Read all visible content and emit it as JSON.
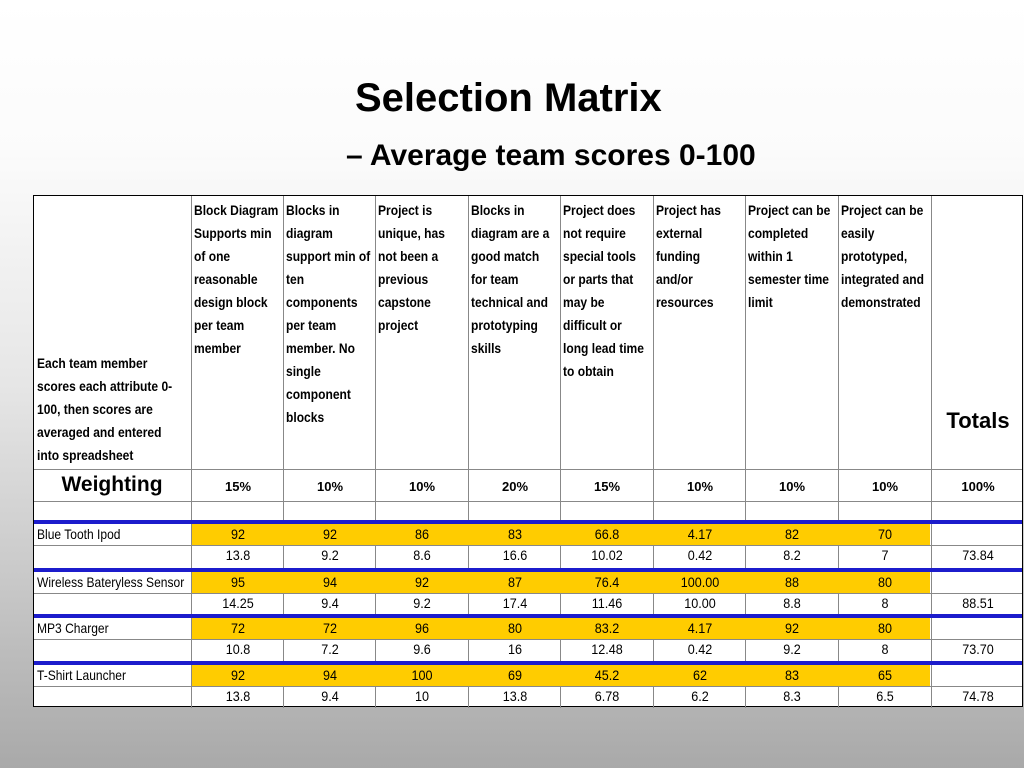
{
  "title": "Selection Matrix",
  "subtitle": "– Average team scores 0-100",
  "matrix": {
    "row_label": [
      "Each team member",
      "scores each attribute 0-",
      "100, then scores are",
      "averaged and entered",
      "into spreadsheet"
    ],
    "criteria": [
      {
        "lines": [
          "Block Diagram",
          "Supports min",
          "of one",
          "reasonable",
          "design block",
          "per team",
          "member"
        ],
        "weight": "15%"
      },
      {
        "lines": [
          "Blocks in",
          "diagram",
          "support min of",
          "ten",
          "components",
          "per team",
          "member. No",
          "single",
          "component",
          "blocks"
        ],
        "weight": "10%"
      },
      {
        "lines": [
          "Project is",
          "unique, has",
          "not been a",
          "previous",
          "capstone",
          "project"
        ],
        "weight": "10%"
      },
      {
        "lines": [
          "Blocks in",
          "diagram are a",
          "good match",
          "for team",
          "technical and",
          "prototyping",
          "skills"
        ],
        "weight": "20%"
      },
      {
        "lines": [
          "Project does",
          "not require",
          "special tools",
          "or parts that",
          "may be",
          "difficult or",
          "long lead time",
          "to obtain"
        ],
        "weight": "15%"
      },
      {
        "lines": [
          "Project has",
          "external",
          "funding",
          "and/or",
          "resources"
        ],
        "weight": "10%"
      },
      {
        "lines": [
          "Project can be",
          "completed",
          "within 1",
          "semester time",
          "limit"
        ],
        "weight": "10%"
      },
      {
        "lines": [
          "Project can be",
          "easily",
          "prototyped,",
          "integrated and",
          "demonstrated"
        ],
        "weight": "10%"
      }
    ],
    "totals_label": "Totals",
    "weighting_label": "Weighting",
    "total_weight": "100%",
    "projects": [
      {
        "name": "Blue Tooth Ipod",
        "scores": [
          "92",
          "92",
          "86",
          "83",
          "66.8",
          "4.17",
          "82",
          "70"
        ],
        "weighted": [
          "13.8",
          "9.2",
          "8.6",
          "16.6",
          "10.02",
          "0.42",
          "8.2",
          "7"
        ],
        "total": "73.84"
      },
      {
        "name": "Wireless Bateryless Sensor",
        "scores": [
          "95",
          "94",
          "92",
          "87",
          "76.4",
          "100.00",
          "88",
          "80"
        ],
        "weighted": [
          "14.25",
          "9.4",
          "9.2",
          "17.4",
          "11.46",
          "10.00",
          "8.8",
          "8"
        ],
        "total": "88.51"
      },
      {
        "name": "MP3 Charger",
        "scores": [
          "72",
          "72",
          "96",
          "80",
          "83.2",
          "4.17",
          "92",
          "80"
        ],
        "weighted": [
          "10.8",
          "7.2",
          "9.6",
          "16",
          "12.48",
          "0.42",
          "9.2",
          "8"
        ],
        "total": "73.70"
      },
      {
        "name": "T-Shirt Launcher",
        "scores": [
          "92",
          "94",
          "100",
          "69",
          "45.2",
          "62",
          "83",
          "65"
        ],
        "weighted": [
          "13.8",
          "9.4",
          "10",
          "13.8",
          "6.78",
          "6.2",
          "8.3",
          "6.5"
        ],
        "total": "74.78"
      }
    ]
  },
  "colors": {
    "score_band": "#ffcc00",
    "separator": "#1c1ccc"
  }
}
